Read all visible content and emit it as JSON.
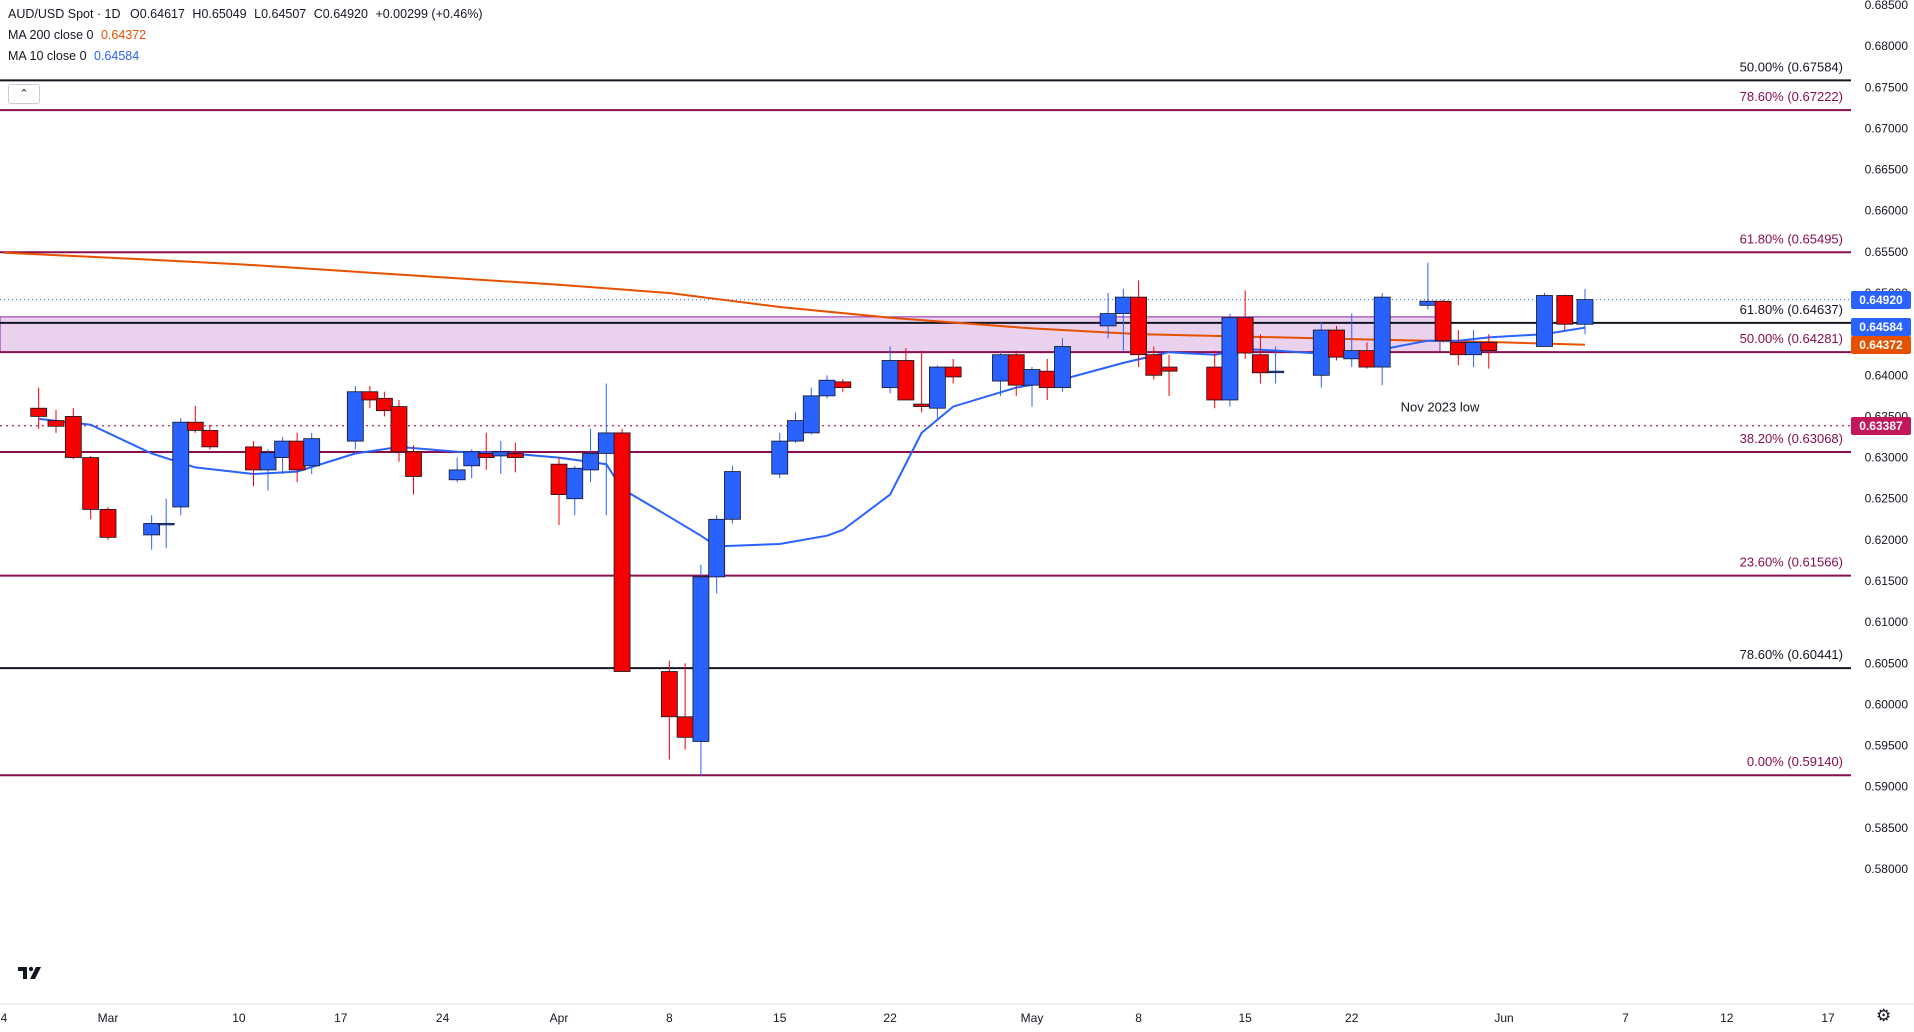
{
  "header": {
    "symbol": "AUD/USD Spot · 1D",
    "open": "O0.64617",
    "high": "H0.65049",
    "low": "L0.64507",
    "close": "C0.64920",
    "change": "+0.00299 (+0.46%)",
    "ma200_label": "MA 200 close 0",
    "ma200_value": "0.64372",
    "ma10_label": "MA 10 close 0",
    "ma10_value": "0.64584",
    "collapse_icon": "chevron-up-icon"
  },
  "colors": {
    "up": "#2962ff",
    "down": "#f70000",
    "ma200": "#e65100",
    "ma10": "#2962ff",
    "fib": "#880e4f",
    "zone": "#e1bee7",
    "last_price": "#2962ff",
    "nov_low": "#c2185b"
  },
  "chart_data": {
    "type": "candlestick",
    "title": "AUD/USD Spot · 1D",
    "y_axis": {
      "range": [
        0.5755,
        0.6855
      ],
      "ticks": [
        "0.68500",
        "0.68000",
        "0.67500",
        "0.67000",
        "0.66500",
        "0.66000",
        "0.65500",
        "0.65000",
        "0.64500",
        "0.64000",
        "0.63500",
        "0.63000",
        "0.62500",
        "0.62000",
        "0.61500",
        "0.61000",
        "0.60500",
        "0.60000",
        "0.59500",
        "0.59000",
        "0.58500",
        "0.58000"
      ]
    },
    "x_axis": {
      "ticks": [
        {
          "label": "4",
          "date": "2024-02-24"
        },
        {
          "label": "Mar",
          "date": "2024-03-01"
        },
        {
          "label": "10",
          "date": "2024-03-10"
        },
        {
          "label": "17",
          "date": "2024-03-17"
        },
        {
          "label": "24",
          "date": "2024-03-24"
        },
        {
          "label": "Apr",
          "date": "2024-04-01"
        },
        {
          "label": "8",
          "date": "2024-04-08"
        },
        {
          "label": "15",
          "date": "2024-04-15"
        },
        {
          "label": "22",
          "date": "2024-04-22"
        },
        {
          "label": "May",
          "date": "2024-05-01"
        },
        {
          "label": "8",
          "date": "2024-05-08"
        },
        {
          "label": "15",
          "date": "2024-05-15"
        },
        {
          "label": "22",
          "date": "2024-05-22"
        },
        {
          "label": "Jun",
          "date": "2024-06-01"
        },
        {
          "label": "7",
          "date": "2024-06-07"
        },
        {
          "label": "12",
          "date": "2024-06-12"
        },
        {
          "label": "17",
          "date": "2024-06-17"
        }
      ]
    },
    "candles": [
      {
        "date": "2024-02-26",
        "o": 0.636,
        "h": 0.6385,
        "l": 0.6335,
        "c": 0.635
      },
      {
        "date": "2024-02-27",
        "o": 0.6345,
        "h": 0.6358,
        "l": 0.633,
        "c": 0.6338
      },
      {
        "date": "2024-02-28",
        "o": 0.635,
        "h": 0.636,
        "l": 0.6298,
        "c": 0.63
      },
      {
        "date": "2024-02-29",
        "o": 0.63,
        "h": 0.6302,
        "l": 0.6225,
        "c": 0.6237
      },
      {
        "date": "2024-03-01",
        "o": 0.6237,
        "h": 0.624,
        "l": 0.62,
        "c": 0.6203
      },
      {
        "date": "2024-03-04",
        "o": 0.6206,
        "h": 0.623,
        "l": 0.6188,
        "c": 0.622
      },
      {
        "date": "2024-03-05",
        "o": 0.622,
        "h": 0.625,
        "l": 0.619,
        "c": 0.622
      },
      {
        "date": "2024-03-06",
        "o": 0.624,
        "h": 0.6348,
        "l": 0.623,
        "c": 0.6343
      },
      {
        "date": "2024-03-07",
        "o": 0.6343,
        "h": 0.6363,
        "l": 0.633,
        "c": 0.6333
      },
      {
        "date": "2024-03-08",
        "o": 0.6333,
        "h": 0.634,
        "l": 0.631,
        "c": 0.6313
      },
      {
        "date": "2024-03-11",
        "o": 0.6313,
        "h": 0.632,
        "l": 0.6265,
        "c": 0.6285
      },
      {
        "date": "2024-03-12",
        "o": 0.6285,
        "h": 0.631,
        "l": 0.626,
        "c": 0.6306
      },
      {
        "date": "2024-03-13",
        "o": 0.63,
        "h": 0.6325,
        "l": 0.628,
        "c": 0.632
      },
      {
        "date": "2024-03-14",
        "o": 0.632,
        "h": 0.633,
        "l": 0.627,
        "c": 0.6285
      },
      {
        "date": "2024-03-15",
        "o": 0.629,
        "h": 0.633,
        "l": 0.628,
        "c": 0.6323
      },
      {
        "date": "2024-03-18",
        "o": 0.632,
        "h": 0.6387,
        "l": 0.631,
        "c": 0.638
      },
      {
        "date": "2024-03-19",
        "o": 0.638,
        "h": 0.6387,
        "l": 0.636,
        "c": 0.637
      },
      {
        "date": "2024-03-20",
        "o": 0.6372,
        "h": 0.638,
        "l": 0.635,
        "c": 0.6357
      },
      {
        "date": "2024-03-21",
        "o": 0.6362,
        "h": 0.637,
        "l": 0.6295,
        "c": 0.6307
      },
      {
        "date": "2024-03-22",
        "o": 0.6307,
        "h": 0.6315,
        "l": 0.6255,
        "c": 0.6277
      },
      {
        "date": "2024-03-25",
        "o": 0.6273,
        "h": 0.63,
        "l": 0.627,
        "c": 0.6285
      },
      {
        "date": "2024-03-26",
        "o": 0.629,
        "h": 0.631,
        "l": 0.6275,
        "c": 0.6307
      },
      {
        "date": "2024-03-27",
        "o": 0.6305,
        "h": 0.633,
        "l": 0.6285,
        "c": 0.63
      },
      {
        "date": "2024-03-28",
        "o": 0.6302,
        "h": 0.632,
        "l": 0.628,
        "c": 0.6307
      },
      {
        "date": "2024-03-29",
        "o": 0.6305,
        "h": 0.6318,
        "l": 0.6282,
        "c": 0.63
      },
      {
        "date": "2024-04-01",
        "o": 0.6292,
        "h": 0.63,
        "l": 0.6218,
        "c": 0.6255
      },
      {
        "date": "2024-04-02",
        "o": 0.625,
        "h": 0.629,
        "l": 0.623,
        "c": 0.6287
      },
      {
        "date": "2024-04-03",
        "o": 0.6285,
        "h": 0.6335,
        "l": 0.627,
        "c": 0.6305
      },
      {
        "date": "2024-04-04",
        "o": 0.6305,
        "h": 0.639,
        "l": 0.623,
        "c": 0.633
      },
      {
        "date": "2024-04-05",
        "o": 0.633,
        "h": 0.6335,
        "l": 0.6045,
        "c": 0.604
      },
      {
        "date": "2024-04-08",
        "o": 0.604,
        "h": 0.6053,
        "l": 0.5933,
        "c": 0.5985
      },
      {
        "date": "2024-04-09",
        "o": 0.5985,
        "h": 0.605,
        "l": 0.5945,
        "c": 0.596
      },
      {
        "date": "2024-04-10",
        "o": 0.5955,
        "h": 0.617,
        "l": 0.5914,
        "c": 0.6155
      },
      {
        "date": "2024-04-11",
        "o": 0.6155,
        "h": 0.623,
        "l": 0.6135,
        "c": 0.6225
      },
      {
        "date": "2024-04-12",
        "o": 0.6225,
        "h": 0.629,
        "l": 0.622,
        "c": 0.6283
      },
      {
        "date": "2024-04-15",
        "o": 0.628,
        "h": 0.633,
        "l": 0.6275,
        "c": 0.632
      },
      {
        "date": "2024-04-16",
        "o": 0.632,
        "h": 0.6355,
        "l": 0.6318,
        "c": 0.6345
      },
      {
        "date": "2024-04-17",
        "o": 0.633,
        "h": 0.6385,
        "l": 0.6328,
        "c": 0.6375
      },
      {
        "date": "2024-04-18",
        "o": 0.6375,
        "h": 0.64,
        "l": 0.6372,
        "c": 0.6394
      },
      {
        "date": "2024-04-19",
        "o": 0.6392,
        "h": 0.6395,
        "l": 0.638,
        "c": 0.6385
      },
      {
        "date": "2024-04-22",
        "o": 0.6385,
        "h": 0.6435,
        "l": 0.6378,
        "c": 0.6418
      },
      {
        "date": "2024-04-23",
        "o": 0.6418,
        "h": 0.6433,
        "l": 0.638,
        "c": 0.637
      },
      {
        "date": "2024-04-24",
        "o": 0.6365,
        "h": 0.643,
        "l": 0.6355,
        "c": 0.6362
      },
      {
        "date": "2024-04-25",
        "o": 0.636,
        "h": 0.6412,
        "l": 0.6345,
        "c": 0.641
      },
      {
        "date": "2024-04-26",
        "o": 0.641,
        "h": 0.642,
        "l": 0.639,
        "c": 0.6398
      },
      {
        "date": "2024-04-29",
        "o": 0.6393,
        "h": 0.643,
        "l": 0.6375,
        "c": 0.6425
      },
      {
        "date": "2024-04-30",
        "o": 0.6425,
        "h": 0.643,
        "l": 0.6375,
        "c": 0.6388
      },
      {
        "date": "2024-05-01",
        "o": 0.6388,
        "h": 0.641,
        "l": 0.6362,
        "c": 0.6407
      },
      {
        "date": "2024-05-02",
        "o": 0.6405,
        "h": 0.642,
        "l": 0.637,
        "c": 0.6385
      },
      {
        "date": "2024-05-03",
        "o": 0.6385,
        "h": 0.6445,
        "l": 0.638,
        "c": 0.6435
      },
      {
        "date": "2024-05-06",
        "o": 0.646,
        "h": 0.65,
        "l": 0.6445,
        "c": 0.6475
      },
      {
        "date": "2024-05-07",
        "o": 0.6475,
        "h": 0.6505,
        "l": 0.643,
        "c": 0.6495
      },
      {
        "date": "2024-05-08",
        "o": 0.6495,
        "h": 0.6515,
        "l": 0.641,
        "c": 0.6425
      },
      {
        "date": "2024-05-09",
        "o": 0.6425,
        "h": 0.6435,
        "l": 0.6395,
        "c": 0.64
      },
      {
        "date": "2024-05-10",
        "o": 0.641,
        "h": 0.6425,
        "l": 0.6375,
        "c": 0.6405
      },
      {
        "date": "2024-05-13",
        "o": 0.641,
        "h": 0.643,
        "l": 0.636,
        "c": 0.637
      },
      {
        "date": "2024-05-14",
        "o": 0.637,
        "h": 0.6475,
        "l": 0.6362,
        "c": 0.647
      },
      {
        "date": "2024-05-15",
        "o": 0.647,
        "h": 0.6503,
        "l": 0.642,
        "c": 0.6427
      },
      {
        "date": "2024-05-16",
        "o": 0.6425,
        "h": 0.645,
        "l": 0.639,
        "c": 0.6403
      },
      {
        "date": "2024-05-17",
        "o": 0.6405,
        "h": 0.6435,
        "l": 0.639,
        "c": 0.6405
      },
      {
        "date": "2024-05-20",
        "o": 0.64,
        "h": 0.6465,
        "l": 0.6385,
        "c": 0.6455
      },
      {
        "date": "2024-05-21",
        "o": 0.6455,
        "h": 0.646,
        "l": 0.6418,
        "c": 0.6422
      },
      {
        "date": "2024-05-22",
        "o": 0.642,
        "h": 0.6475,
        "l": 0.641,
        "c": 0.643
      },
      {
        "date": "2024-05-23",
        "o": 0.643,
        "h": 0.644,
        "l": 0.6408,
        "c": 0.641
      },
      {
        "date": "2024-05-24",
        "o": 0.641,
        "h": 0.65,
        "l": 0.6388,
        "c": 0.6495
      },
      {
        "date": "2024-05-27",
        "o": 0.6485,
        "h": 0.6537,
        "l": 0.648,
        "c": 0.649
      },
      {
        "date": "2024-05-28",
        "o": 0.649,
        "h": 0.6492,
        "l": 0.644,
        "c": 0.6442
      },
      {
        "date": "2024-05-29",
        "o": 0.644,
        "h": 0.6455,
        "l": 0.6412,
        "c": 0.6425
      },
      {
        "date": "2024-05-30",
        "o": 0.6425,
        "h": 0.6455,
        "l": 0.641,
        "c": 0.644
      },
      {
        "date": "2024-05-31",
        "o": 0.644,
        "h": 0.645,
        "l": 0.6408,
        "c": 0.643
      },
      {
        "date": "2024-06-03",
        "o": 0.6435,
        "h": 0.65,
        "l": 0.6435,
        "c": 0.6497
      },
      {
        "date": "2024-06-04",
        "o": 0.6497,
        "h": 0.6498,
        "l": 0.6455,
        "c": 0.6462
      },
      {
        "date": "2024-06-05",
        "o": 0.6462,
        "h": 0.6505,
        "l": 0.645,
        "c": 0.6492
      }
    ],
    "ma10": [
      {
        "date": "2024-02-26",
        "v": 0.6347
      },
      {
        "date": "2024-02-29",
        "v": 0.634
      },
      {
        "date": "2024-03-04",
        "v": 0.6305
      },
      {
        "date": "2024-03-07",
        "v": 0.6288
      },
      {
        "date": "2024-03-11",
        "v": 0.628
      },
      {
        "date": "2024-03-14",
        "v": 0.6283
      },
      {
        "date": "2024-03-18",
        "v": 0.6305
      },
      {
        "date": "2024-03-21",
        "v": 0.6313
      },
      {
        "date": "2024-03-25",
        "v": 0.6307
      },
      {
        "date": "2024-03-28",
        "v": 0.6306
      },
      {
        "date": "2024-04-01",
        "v": 0.63
      },
      {
        "date": "2024-04-04",
        "v": 0.6292
      },
      {
        "date": "2024-04-05",
        "v": 0.6262
      },
      {
        "date": "2024-04-08",
        "v": 0.6228
      },
      {
        "date": "2024-04-10",
        "v": 0.6205
      },
      {
        "date": "2024-04-11",
        "v": 0.6192
      },
      {
        "date": "2024-04-15",
        "v": 0.6195
      },
      {
        "date": "2024-04-18",
        "v": 0.6205
      },
      {
        "date": "2024-04-19",
        "v": 0.6212
      },
      {
        "date": "2024-04-22",
        "v": 0.6255
      },
      {
        "date": "2024-04-24",
        "v": 0.633
      },
      {
        "date": "2024-04-26",
        "v": 0.6362
      },
      {
        "date": "2024-04-30",
        "v": 0.6385
      },
      {
        "date": "2024-05-03",
        "v": 0.6395
      },
      {
        "date": "2024-05-07",
        "v": 0.6415
      },
      {
        "date": "2024-05-10",
        "v": 0.6428
      },
      {
        "date": "2024-05-13",
        "v": 0.6425
      },
      {
        "date": "2024-05-15",
        "v": 0.6432
      },
      {
        "date": "2024-05-17",
        "v": 0.643
      },
      {
        "date": "2024-05-21",
        "v": 0.6425
      },
      {
        "date": "2024-05-23",
        "v": 0.6428
      },
      {
        "date": "2024-05-27",
        "v": 0.6442
      },
      {
        "date": "2024-05-29",
        "v": 0.6442
      },
      {
        "date": "2024-05-31",
        "v": 0.6446
      },
      {
        "date": "2024-06-03",
        "v": 0.645
      },
      {
        "date": "2024-06-05",
        "v": 0.6458
      }
    ],
    "ma200": [
      {
        "date": "2024-02-24",
        "v": 0.6549
      },
      {
        "date": "2024-03-01",
        "v": 0.6543
      },
      {
        "date": "2024-03-10",
        "v": 0.6535
      },
      {
        "date": "2024-03-17",
        "v": 0.6527
      },
      {
        "date": "2024-03-24",
        "v": 0.6519
      },
      {
        "date": "2024-04-01",
        "v": 0.651
      },
      {
        "date": "2024-04-08",
        "v": 0.65
      },
      {
        "date": "2024-04-15",
        "v": 0.6483
      },
      {
        "date": "2024-04-22",
        "v": 0.647
      },
      {
        "date": "2024-05-01",
        "v": 0.6457
      },
      {
        "date": "2024-05-08",
        "v": 0.645
      },
      {
        "date": "2024-05-15",
        "v": 0.6447
      },
      {
        "date": "2024-05-22",
        "v": 0.6444
      },
      {
        "date": "2024-06-01",
        "v": 0.644
      },
      {
        "date": "2024-06-05",
        "v": 0.6437
      }
    ],
    "levels": [
      {
        "label": "50.00% (0.67584)",
        "value": 0.67584,
        "color": "#131722"
      },
      {
        "label": "78.60% (0.67222)",
        "value": 0.67222,
        "color": "#880e4f"
      },
      {
        "label": "61.80% (0.65495)",
        "value": 0.65495,
        "color": "#880e4f"
      },
      {
        "label": "61.80% (0.64637)",
        "value": 0.64637,
        "color": "#131722"
      },
      {
        "label": "50.00% (0.64281)",
        "value": 0.64281,
        "color": "#880e4f"
      },
      {
        "label": "38.20% (0.63068)",
        "value": 0.63068,
        "color": "#880e4f"
      },
      {
        "label": "23.60% (0.61566)",
        "value": 0.61566,
        "color": "#880e4f"
      },
      {
        "label": "78.60% (0.60441)",
        "value": 0.60441,
        "color": "#131722"
      },
      {
        "label": "0.00% (0.59140)",
        "value": 0.5914,
        "color": "#880e4f"
      }
    ],
    "zone": {
      "top": 0.6471,
      "bottom": 0.64281
    },
    "nov_2023_low": {
      "label": "Nov 2023 low",
      "value": 0.63387,
      "badge": "0.63387"
    },
    "last_price": {
      "value": 0.6492,
      "badge": "0.64920"
    },
    "badges": {
      "ma10": "0.64584",
      "ma200": "0.64372"
    }
  }
}
